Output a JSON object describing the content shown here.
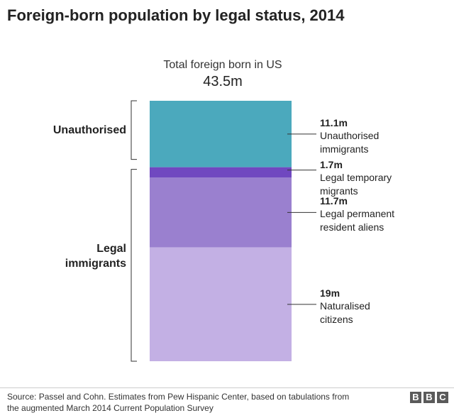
{
  "title": "Foreign-born population by legal status, 2014",
  "chart_data": {
    "type": "bar",
    "stacked": true,
    "total": {
      "label": "Total foreign born in US",
      "value_text": "43.5m",
      "value": 43.5
    },
    "groups": [
      {
        "label": "Unauthorised",
        "segments": [
          0
        ]
      },
      {
        "label_line1": "Legal",
        "label_line2": "immigrants",
        "segments": [
          1,
          2,
          3
        ]
      }
    ],
    "segments": [
      {
        "value": 11.1,
        "value_text": "11.1m",
        "label_line1": "Unauthorised",
        "label_line2": "immigrants",
        "color": "#4ba9bd"
      },
      {
        "value": 1.7,
        "value_text": "1.7m",
        "label_line1": "Legal temporary",
        "label_line2": "migrants",
        "color": "#7048c0"
      },
      {
        "value": 11.7,
        "value_text": "11.7m",
        "label_line1": "Legal permanent",
        "label_line2": "resident aliens",
        "color": "#9a80cf"
      },
      {
        "value": 19,
        "value_text": "19m",
        "label_line1": "Naturalised",
        "label_line2": "citizens",
        "color": "#c3b0e4"
      }
    ]
  },
  "footer": {
    "source_line1": "Source: Passel and Cohn. Estimates from Pew Hispanic Center, based on tabulations from",
    "source_line2": "the augmented March 2014 Current Population Survey",
    "logo": [
      "B",
      "B",
      "C"
    ]
  }
}
